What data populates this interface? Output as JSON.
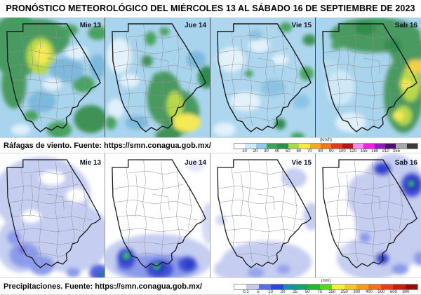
{
  "title": "PRONÓSTICO METEOROLÓGICO DEL MIÉRCOLES 13 AL SÁBADO 16 DE SEPTIEMBRE DE 2023",
  "wind": {
    "caption": "Ráfagas de viento.  Fuente: https://smn.conagua.gob.mx/",
    "days": [
      {
        "label": "Mie 13"
      },
      {
        "label": "Jue 14"
      },
      {
        "label": "Vie 15"
      },
      {
        "label": "Sab 16"
      }
    ],
    "legend": {
      "unit": "(km/h)",
      "ticks": [
        "10",
        "20",
        "30",
        "40",
        "50",
        "60",
        "70",
        "80",
        "90",
        "100",
        "120",
        "155",
        "180",
        "210",
        "255"
      ],
      "colors": [
        "#ffffff",
        "#cfe9f6",
        "#8fc9e6",
        "#3fa35c",
        "#2e8f4b",
        "#a9d74b",
        "#f6e94e",
        "#f3a72b",
        "#ed7621",
        "#e03a20",
        "#ad1a12",
        "#f98bf0",
        "#ec1fe6",
        "#8e1bc4",
        "#4f0e6b",
        "#a8a8a8",
        "#3a3a3a"
      ]
    }
  },
  "precip": {
    "caption": "Precipitaciones.  Fuente: https://smn.conagua.gob.mx/",
    "days": [
      {
        "label": "Mie 13"
      },
      {
        "label": "Jue 14"
      },
      {
        "label": "Vie 15"
      },
      {
        "label": "Sab 16"
      }
    ],
    "legend": {
      "unit": "(mm)",
      "ticks": [
        "0.1",
        "5",
        "10",
        "20",
        "25",
        "50",
        "75",
        "150",
        "250",
        "300",
        "400",
        "500",
        "600",
        "800"
      ],
      "colors": [
        "#ffffff",
        "#c3c9ef",
        "#5c6fe0",
        "#2c47d8",
        "#1691a0",
        "#16a06a",
        "#28b32e",
        "#52d926",
        "#f5ef3d",
        "#f7c52e",
        "#f59a22",
        "#f0711d",
        "#e63d1a",
        "#c3200f",
        "#8f0f08"
      ]
    }
  }
}
